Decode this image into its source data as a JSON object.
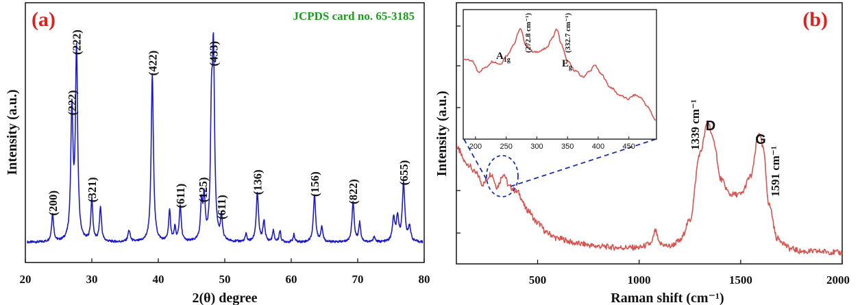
{
  "panel_a": {
    "label": "(a)",
    "card_text": "JCPDS card no. 65-3185",
    "xlabel": "2(θ) degree",
    "ylabel": "Intensity (a.u.)"
  },
  "panel_b": {
    "label": "(b)",
    "xlabel": "Raman shift (cm⁻¹)",
    "ylabel": "Intensity (a.u.)",
    "d_band_label": "D",
    "g_band_label": "G",
    "d_band_value": "1339 cm⁻¹",
    "g_band_value": "1591 cm⁻¹",
    "inset_a1g_label": "A1g",
    "inset_eg_label": "Eg",
    "inset_a1g_value": "(272.8 cm⁻¹)",
    "inset_eg_value": "(332.7 cm⁻¹)"
  },
  "colors": {
    "xrd_line": "#1a1acc",
    "raman_line": "#d9534f",
    "panel_label": "#e0201b",
    "card_text": "#1e9a1e",
    "inset_guide": "#1a2fa6"
  },
  "chart_data": [
    {
      "type": "line",
      "panel": "(a)",
      "xlabel": "2(θ) degree",
      "ylabel": "Intensity (a.u.)",
      "xlim": [
        20,
        80
      ],
      "x_ticks": [
        20,
        30,
        40,
        50,
        60,
        70,
        80
      ],
      "y_ticks_shown": false,
      "baseline": 3,
      "peaks": [
        {
          "x": 24.1,
          "y": 15,
          "w": 0.18
        },
        {
          "x": 27.0,
          "y": 68,
          "w": 0.2
        },
        {
          "x": 27.7,
          "y": 100,
          "w": 0.2
        },
        {
          "x": 30.0,
          "y": 22,
          "w": 0.18
        },
        {
          "x": 31.3,
          "y": 18,
          "w": 0.18
        },
        {
          "x": 35.6,
          "y": 6,
          "w": 0.2
        },
        {
          "x": 39.1,
          "y": 89,
          "w": 0.2
        },
        {
          "x": 41.7,
          "y": 16,
          "w": 0.18
        },
        {
          "x": 42.5,
          "y": 7,
          "w": 0.15
        },
        {
          "x": 43.3,
          "y": 19,
          "w": 0.18
        },
        {
          "x": 46.5,
          "y": 19,
          "w": 0.18
        },
        {
          "x": 46.9,
          "y": 22,
          "w": 0.18
        },
        {
          "x": 48.0,
          "y": 58,
          "w": 0.18
        },
        {
          "x": 48.3,
          "y": 94,
          "w": 0.2
        },
        {
          "x": 49.5,
          "y": 13,
          "w": 0.16
        },
        {
          "x": 53.2,
          "y": 4,
          "w": 0.15
        },
        {
          "x": 54.9,
          "y": 26,
          "w": 0.2
        },
        {
          "x": 55.9,
          "y": 11,
          "w": 0.18
        },
        {
          "x": 57.3,
          "y": 6,
          "w": 0.15
        },
        {
          "x": 58.3,
          "y": 6,
          "w": 0.15
        },
        {
          "x": 60.4,
          "y": 4,
          "w": 0.15
        },
        {
          "x": 63.5,
          "y": 25,
          "w": 0.2
        },
        {
          "x": 64.6,
          "y": 8,
          "w": 0.18
        },
        {
          "x": 69.3,
          "y": 21,
          "w": 0.2
        },
        {
          "x": 70.3,
          "y": 10,
          "w": 0.18
        },
        {
          "x": 72.5,
          "y": 3,
          "w": 0.15
        },
        {
          "x": 75.4,
          "y": 12,
          "w": 0.22
        },
        {
          "x": 76.0,
          "y": 12,
          "w": 0.22
        },
        {
          "x": 76.9,
          "y": 31,
          "w": 0.22
        },
        {
          "x": 77.8,
          "y": 8,
          "w": 0.2
        }
      ],
      "peak_labels": [
        {
          "text": "(200)",
          "x": 24.1,
          "y": 15
        },
        {
          "text": "(222)",
          "x": 27.0,
          "y": 68
        },
        {
          "text": "(222)",
          "x": 27.7,
          "y": 100
        },
        {
          "text": "(321)",
          "x": 30.0,
          "y": 22
        },
        {
          "text": "(422)",
          "x": 39.1,
          "y": 89
        },
        {
          "text": "(611)",
          "x": 43.3,
          "y": 19
        },
        {
          "text": "(125)",
          "x": 46.7,
          "y": 22
        },
        {
          "text": "(433)",
          "x": 48.3,
          "y": 94
        },
        {
          "text": "(611)",
          "x": 49.5,
          "y": 13
        },
        {
          "text": "(136)",
          "x": 54.9,
          "y": 26
        },
        {
          "text": "(156)",
          "x": 63.5,
          "y": 25
        },
        {
          "text": "(822)",
          "x": 69.3,
          "y": 21
        },
        {
          "text": "(655)",
          "x": 76.9,
          "y": 31
        }
      ]
    },
    {
      "type": "line",
      "panel": "(b)",
      "xlabel": "Raman shift (cm⁻¹)",
      "ylabel": "Intensity (a.u.)",
      "xlim": [
        100,
        2000
      ],
      "x_ticks": [
        500,
        1000,
        1500,
        2000
      ],
      "y_ticks_shown": false,
      "points": [
        [
          100,
          44
        ],
        [
          150,
          38
        ],
        [
          200,
          34
        ],
        [
          230,
          30
        ],
        [
          272,
          34
        ],
        [
          300,
          29
        ],
        [
          333,
          34
        ],
        [
          360,
          29
        ],
        [
          400,
          27
        ],
        [
          450,
          20
        ],
        [
          500,
          15
        ],
        [
          550,
          11
        ],
        [
          600,
          9
        ],
        [
          700,
          7
        ],
        [
          800,
          6
        ],
        [
          900,
          5.5
        ],
        [
          1000,
          5.5
        ],
        [
          1060,
          7
        ],
        [
          1080,
          12
        ],
        [
          1100,
          7
        ],
        [
          1150,
          6
        ],
        [
          1200,
          8
        ],
        [
          1250,
          16
        ],
        [
          1300,
          42
        ],
        [
          1339,
          54
        ],
        [
          1370,
          46
        ],
        [
          1400,
          32
        ],
        [
          1450,
          26
        ],
        [
          1500,
          26
        ],
        [
          1550,
          33
        ],
        [
          1591,
          50
        ],
        [
          1610,
          44
        ],
        [
          1640,
          22
        ],
        [
          1680,
          9
        ],
        [
          1750,
          5
        ],
        [
          1800,
          4
        ],
        [
          1900,
          4
        ],
        [
          2000,
          3.5
        ]
      ],
      "annotations": [
        {
          "text": "D",
          "x": 1339
        },
        {
          "text": "G",
          "x": 1591
        },
        {
          "text": "1339 cm⁻¹",
          "x": 1339
        },
        {
          "text": "1591 cm⁻¹",
          "x": 1591
        }
      ],
      "inset": {
        "xlim": [
          180,
          495
        ],
        "x_ticks": [
          200,
          250,
          300,
          350,
          400,
          450
        ],
        "points": [
          [
            180,
            62
          ],
          [
            195,
            60
          ],
          [
            205,
            52
          ],
          [
            215,
            55
          ],
          [
            228,
            60
          ],
          [
            240,
            58
          ],
          [
            252,
            65
          ],
          [
            262,
            73
          ],
          [
            272.8,
            85
          ],
          [
            283,
            72
          ],
          [
            295,
            67
          ],
          [
            305,
            68
          ],
          [
            315,
            70
          ],
          [
            325,
            78
          ],
          [
            332.7,
            85
          ],
          [
            340,
            73
          ],
          [
            350,
            60
          ],
          [
            362,
            53
          ],
          [
            375,
            48
          ],
          [
            385,
            52
          ],
          [
            395,
            57
          ],
          [
            405,
            50
          ],
          [
            420,
            40
          ],
          [
            435,
            34
          ],
          [
            448,
            31
          ],
          [
            460,
            34
          ],
          [
            470,
            32
          ],
          [
            480,
            25
          ],
          [
            495,
            14
          ]
        ],
        "peak_labels": [
          {
            "text": "A1g",
            "value": "(272.8 cm⁻¹)",
            "x": 272.8
          },
          {
            "text": "Eg",
            "value": "(332.7 cm⁻¹)",
            "x": 332.7
          }
        ]
      }
    }
  ]
}
